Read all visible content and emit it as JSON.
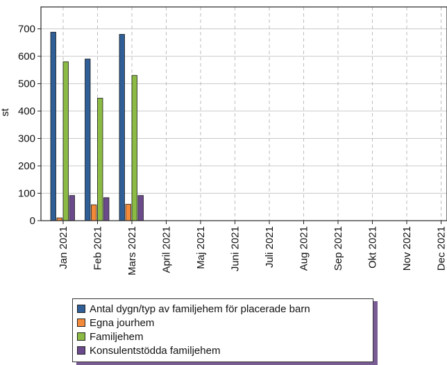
{
  "chart_data": {
    "type": "bar",
    "title": "",
    "xlabel": "",
    "ylabel": "st",
    "ylim": [
      0,
      780
    ],
    "yticks": [
      0,
      100,
      200,
      300,
      400,
      500,
      600,
      700
    ],
    "grid": true,
    "legend_position": "bottom",
    "categories": [
      "Jan 2021",
      "Feb 2021",
      "Mars 2021",
      "April 2021",
      "Maj 2021",
      "Juni 2021",
      "Juli 2021",
      "Aug 2021",
      "Sep 2021",
      "Okt 2021",
      "Nov 2021",
      "Dec 2021"
    ],
    "series": [
      {
        "name": "Antal dygn/typ av familjehem för placerade barn",
        "color": "#2f5f96",
        "values": [
          688,
          590,
          680,
          null,
          null,
          null,
          null,
          null,
          null,
          null,
          null,
          null
        ]
      },
      {
        "name": "Egna jourhem",
        "color": "#f28a3a",
        "values": [
          10,
          58,
          60,
          null,
          null,
          null,
          null,
          null,
          null,
          null,
          null,
          null
        ]
      },
      {
        "name": "Familjehem",
        "color": "#8bbb44",
        "values": [
          580,
          447,
          530,
          null,
          null,
          null,
          null,
          null,
          null,
          null,
          null,
          null
        ]
      },
      {
        "name": "Konsulentstödda familjehem",
        "color": "#6b4a8c",
        "values": [
          92,
          84,
          92,
          null,
          null,
          null,
          null,
          null,
          null,
          null,
          null,
          null
        ]
      }
    ]
  }
}
